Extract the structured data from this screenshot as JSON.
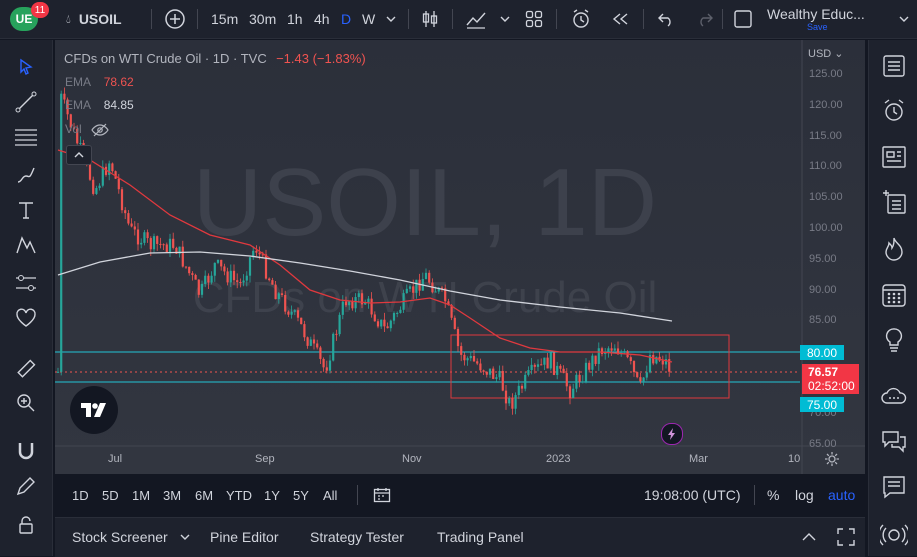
{
  "topbar": {
    "logo_text": "UE",
    "notifications": "11",
    "symbol": "USOIL",
    "intervals": [
      "15m",
      "30m",
      "1h",
      "4h",
      "D",
      "W"
    ],
    "active_interval": "D",
    "layout_name": "Wealthy Educ...",
    "save_label": "Save"
  },
  "legend": {
    "title": "CFDs on WTI Crude Oil · 1D · TVC",
    "change": "−1.43 (−1.83%)",
    "ema1_label": "EMA",
    "ema1_value": "78.62",
    "ema2_label": "EMA",
    "ema2_value": "84.85",
    "vol_label": "Vol"
  },
  "watermark": {
    "main": "USOIL, 1D",
    "sub": "CFDs on WTI Crude Oil"
  },
  "price_axis": {
    "currency": "USD",
    "ticks": [
      "125.00",
      "120.00",
      "115.00",
      "110.00",
      "105.00",
      "100.00",
      "95.00",
      "90.00",
      "85.00",
      "80.00",
      "75.00",
      "70.00",
      "65.00"
    ],
    "level_80": "80.00",
    "level_75": "75.00",
    "last_price": "76.57",
    "countdown": "02:52:00"
  },
  "time_axis": {
    "labels": [
      "Jul",
      "Sep",
      "Nov",
      "2023",
      "Mar",
      "10"
    ]
  },
  "range_bar": {
    "ranges": [
      "1D",
      "5D",
      "1M",
      "3M",
      "6M",
      "YTD",
      "1Y",
      "5Y",
      "All"
    ],
    "clock": "19:08:00 (UTC)",
    "percent": "%",
    "log": "log",
    "auto": "auto"
  },
  "panel": {
    "stock_screener": "Stock Screener",
    "pine_editor": "Pine Editor",
    "strategy_tester": "Strategy Tester",
    "trading_panel": "Trading Panel"
  },
  "colors": {
    "background": "#131722",
    "chart_bg": "#2e323c",
    "up": "#26a69a",
    "down": "#ef5350",
    "ema_fast": "#e0393e",
    "ema_slow": "#d1d4dc",
    "level_line": "#22c3d6",
    "accent": "#2962ff"
  }
}
